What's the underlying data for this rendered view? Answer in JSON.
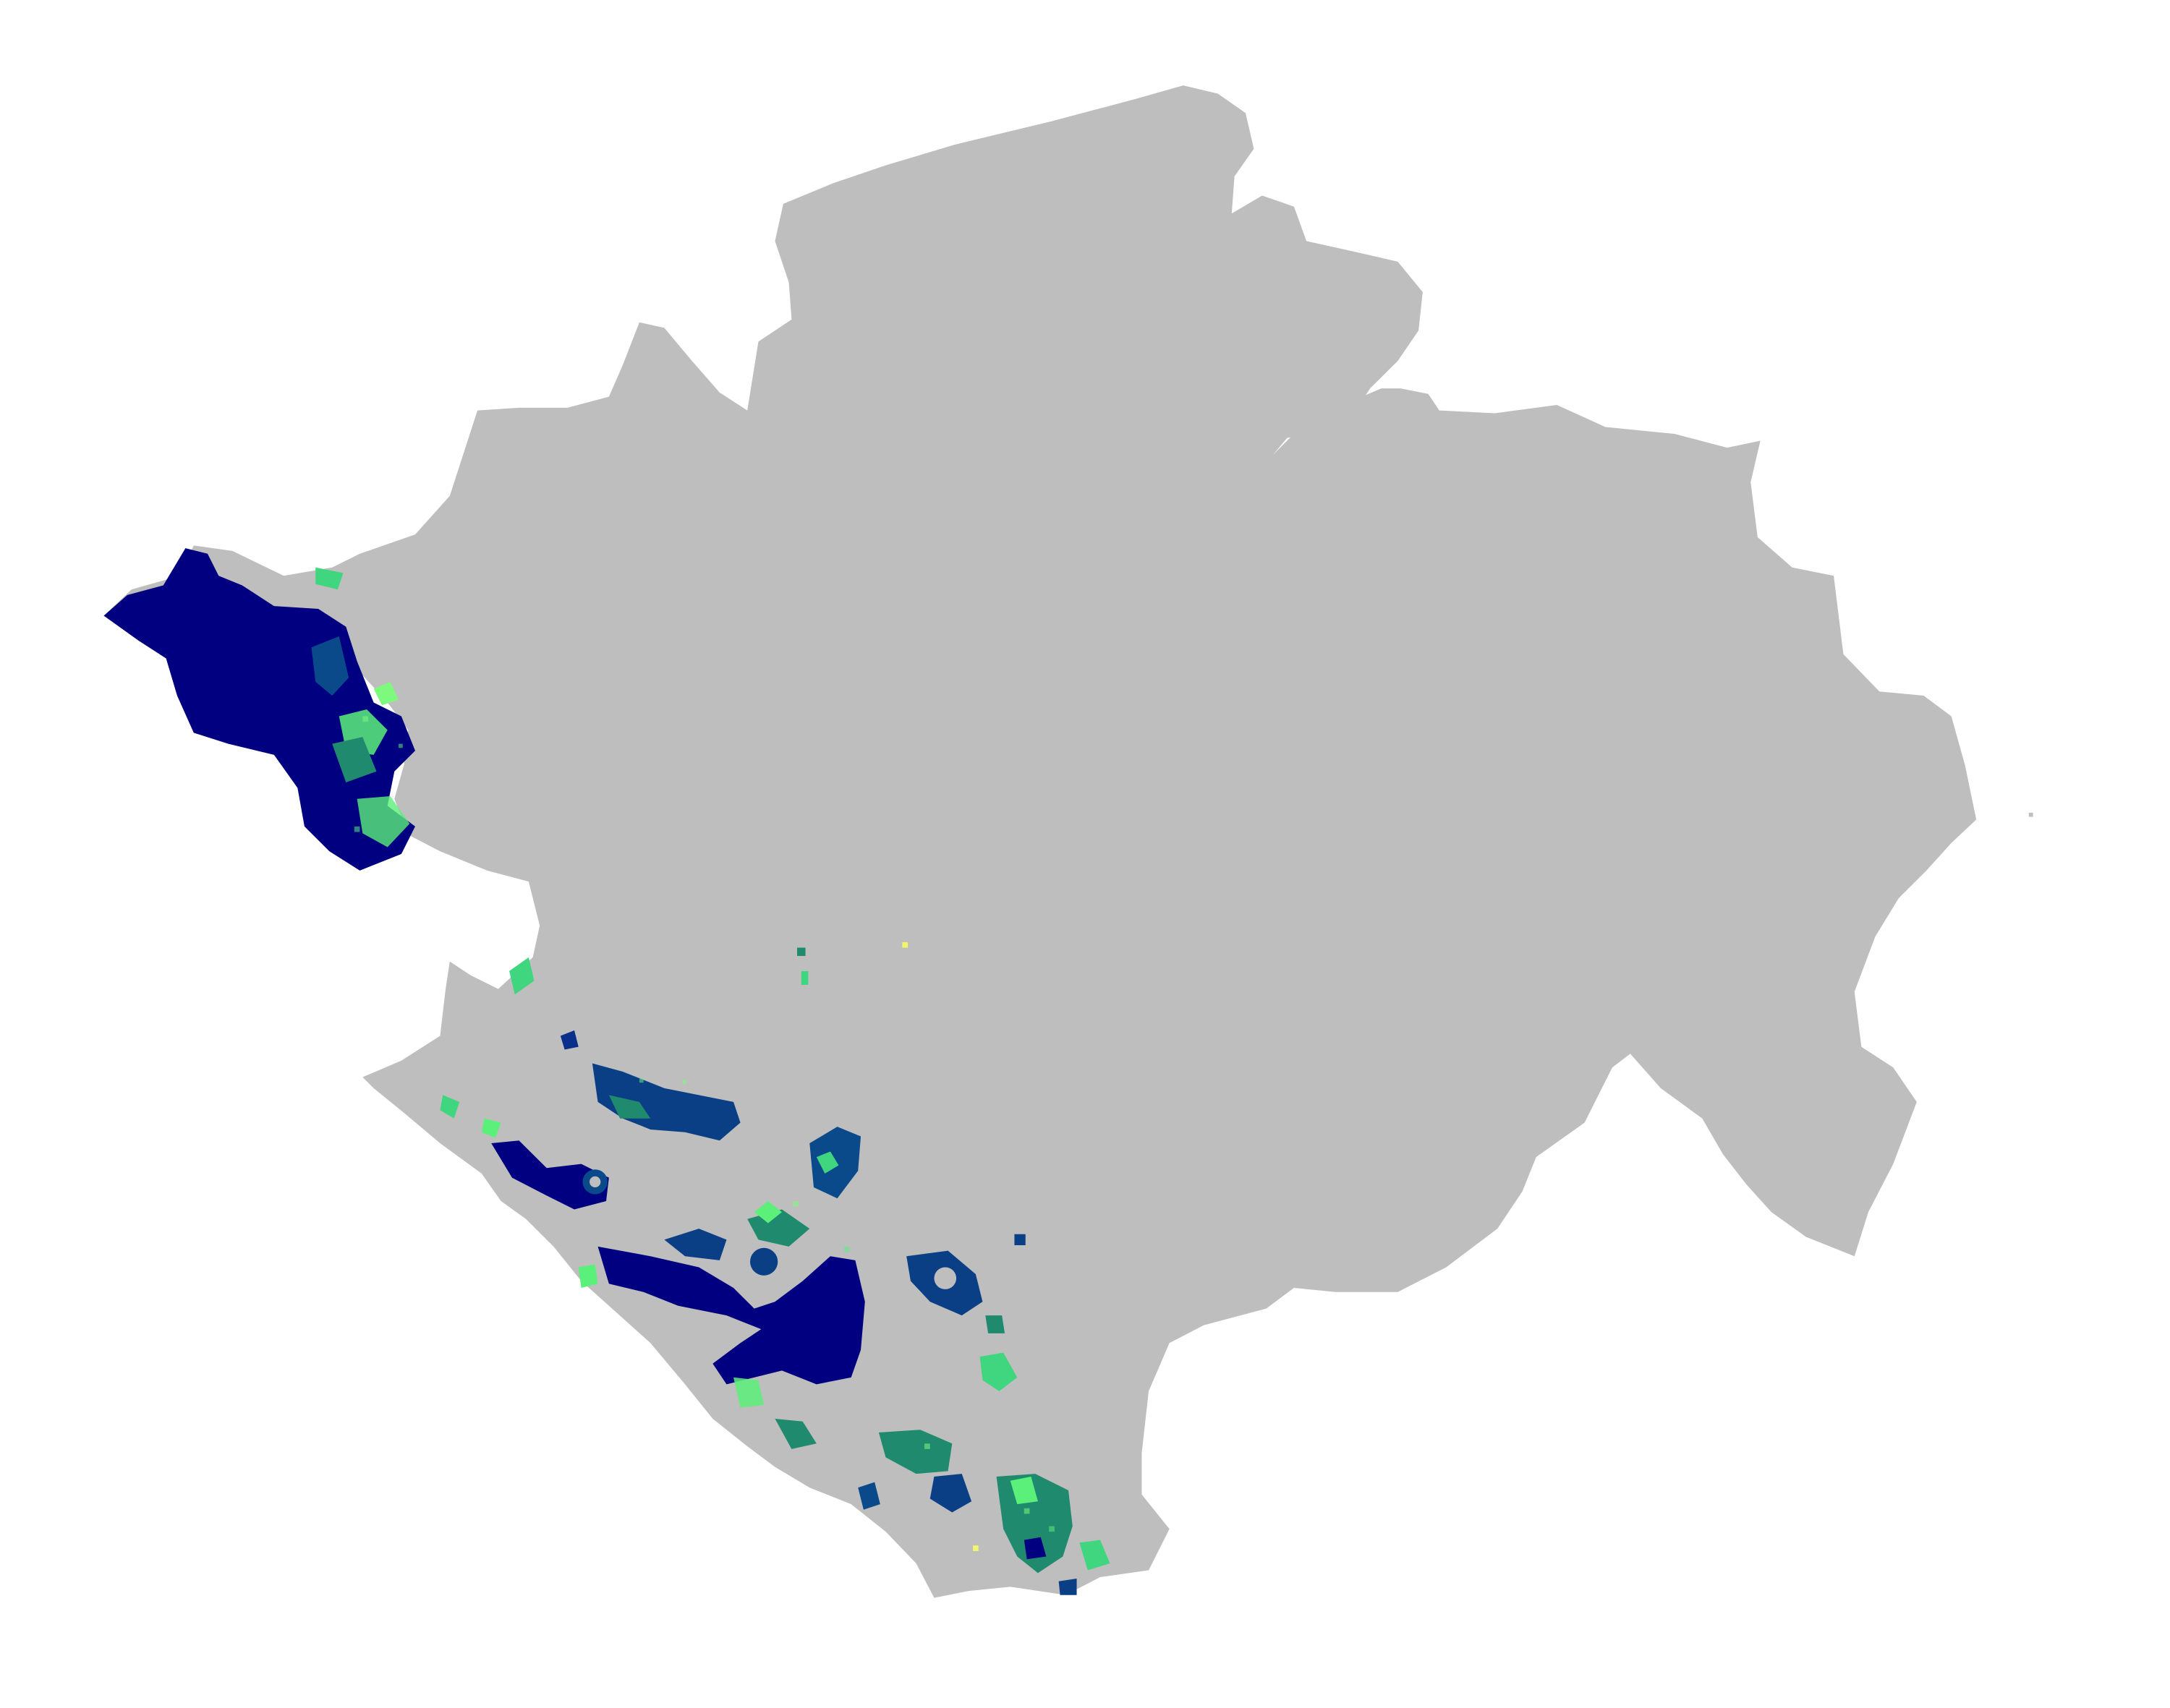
{
  "map": {
    "background_color": "#ffffff",
    "region_fill_color": "#bebebe",
    "legend": null,
    "title": "",
    "value_ramp_colors": [
      "#000080",
      "#0a3f86",
      "#1f8a6e",
      "#34d67a",
      "#7dfa7d",
      "#f5f56a"
    ],
    "highlight_layers": [
      {
        "name": "west-peninsula-cluster",
        "dominant_color": "#000080"
      },
      {
        "name": "southwest-coastal-patches",
        "dominant_color": "#0a2f8a"
      },
      {
        "name": "green-fringe-pixels",
        "dominant_color": "#5af07a"
      }
    ]
  }
}
